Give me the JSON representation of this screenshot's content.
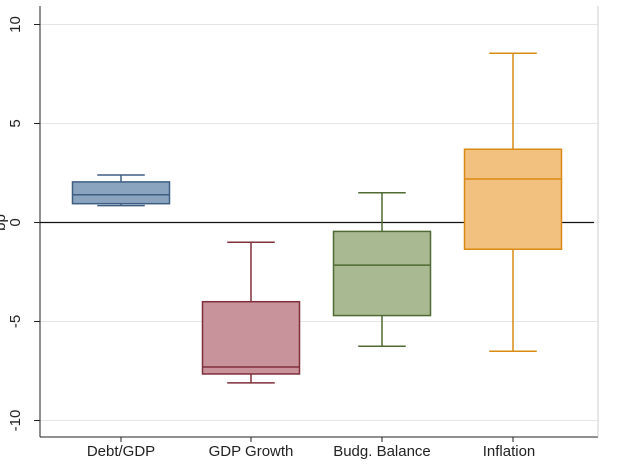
{
  "chart_data": {
    "type": "box",
    "title": "",
    "ylabel": "bp",
    "xlabel": "",
    "ylim": [
      -10.3,
      10.3
    ],
    "yticks": [
      -10,
      -5,
      0,
      5,
      10
    ],
    "ytick_labels": [
      "-10",
      "-5",
      "0",
      "5",
      "10"
    ],
    "grid": true,
    "reference_line_y": 0,
    "categories": [
      "Debt/GDP",
      "GDP Growth",
      "Budg. Balance",
      "Inflation"
    ],
    "boxes": [
      {
        "category": "Debt/GDP",
        "min": 0.85,
        "q1": 0.95,
        "median": 1.4,
        "q3": 2.05,
        "max": 2.4,
        "fill": "#8aa3bf",
        "stroke": "#3e5f82"
      },
      {
        "category": "GDP Growth",
        "min": -8.1,
        "q1": -7.65,
        "median": -7.3,
        "q3": -4.0,
        "max": -1.0,
        "fill": "#c8939b",
        "stroke": "#7f2f3a"
      },
      {
        "category": "Budg. Balance",
        "min": -6.25,
        "q1": -4.7,
        "median": -2.15,
        "q3": -0.45,
        "max": 1.5,
        "fill": "#a9ba93",
        "stroke": "#4f6a32"
      },
      {
        "category": "Inflation",
        "min": -6.5,
        "q1": -1.35,
        "median": 2.2,
        "q3": 3.7,
        "max": 8.55,
        "fill": "#f2c07f",
        "stroke": "#d98a12"
      }
    ]
  }
}
